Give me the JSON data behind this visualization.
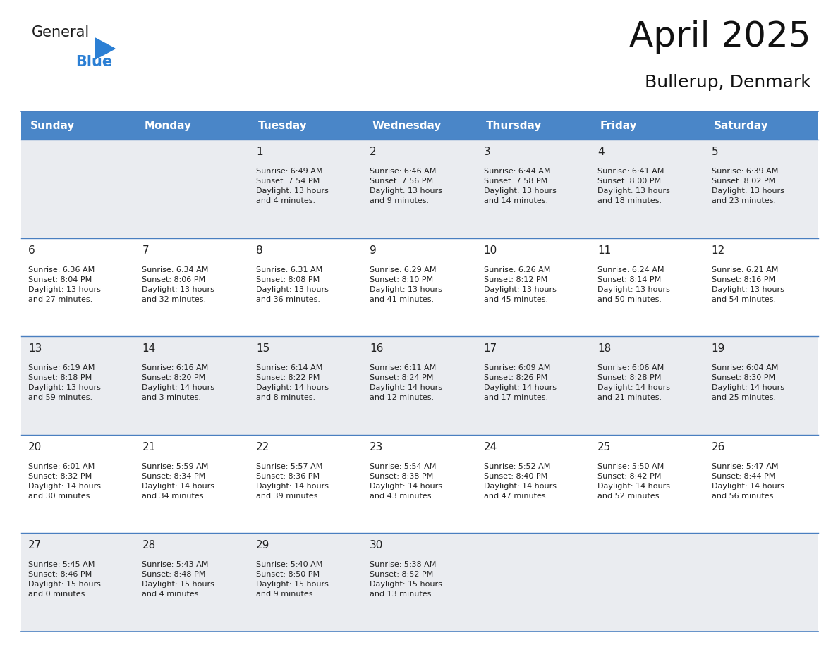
{
  "title": "April 2025",
  "subtitle": "Bullerup, Denmark",
  "header_color": "#4A86C8",
  "header_text_color": "#FFFFFF",
  "cell_bg_light": "#EAECF0",
  "cell_bg_white": "#FFFFFF",
  "border_color": "#4A7FC0",
  "text_color": "#222222",
  "day_headers": [
    "Sunday",
    "Monday",
    "Tuesday",
    "Wednesday",
    "Thursday",
    "Friday",
    "Saturday"
  ],
  "weeks": [
    [
      {
        "day": "",
        "info": ""
      },
      {
        "day": "",
        "info": ""
      },
      {
        "day": "1",
        "info": "Sunrise: 6:49 AM\nSunset: 7:54 PM\nDaylight: 13 hours\nand 4 minutes."
      },
      {
        "day": "2",
        "info": "Sunrise: 6:46 AM\nSunset: 7:56 PM\nDaylight: 13 hours\nand 9 minutes."
      },
      {
        "day": "3",
        "info": "Sunrise: 6:44 AM\nSunset: 7:58 PM\nDaylight: 13 hours\nand 14 minutes."
      },
      {
        "day": "4",
        "info": "Sunrise: 6:41 AM\nSunset: 8:00 PM\nDaylight: 13 hours\nand 18 minutes."
      },
      {
        "day": "5",
        "info": "Sunrise: 6:39 AM\nSunset: 8:02 PM\nDaylight: 13 hours\nand 23 minutes."
      }
    ],
    [
      {
        "day": "6",
        "info": "Sunrise: 6:36 AM\nSunset: 8:04 PM\nDaylight: 13 hours\nand 27 minutes."
      },
      {
        "day": "7",
        "info": "Sunrise: 6:34 AM\nSunset: 8:06 PM\nDaylight: 13 hours\nand 32 minutes."
      },
      {
        "day": "8",
        "info": "Sunrise: 6:31 AM\nSunset: 8:08 PM\nDaylight: 13 hours\nand 36 minutes."
      },
      {
        "day": "9",
        "info": "Sunrise: 6:29 AM\nSunset: 8:10 PM\nDaylight: 13 hours\nand 41 minutes."
      },
      {
        "day": "10",
        "info": "Sunrise: 6:26 AM\nSunset: 8:12 PM\nDaylight: 13 hours\nand 45 minutes."
      },
      {
        "day": "11",
        "info": "Sunrise: 6:24 AM\nSunset: 8:14 PM\nDaylight: 13 hours\nand 50 minutes."
      },
      {
        "day": "12",
        "info": "Sunrise: 6:21 AM\nSunset: 8:16 PM\nDaylight: 13 hours\nand 54 minutes."
      }
    ],
    [
      {
        "day": "13",
        "info": "Sunrise: 6:19 AM\nSunset: 8:18 PM\nDaylight: 13 hours\nand 59 minutes."
      },
      {
        "day": "14",
        "info": "Sunrise: 6:16 AM\nSunset: 8:20 PM\nDaylight: 14 hours\nand 3 minutes."
      },
      {
        "day": "15",
        "info": "Sunrise: 6:14 AM\nSunset: 8:22 PM\nDaylight: 14 hours\nand 8 minutes."
      },
      {
        "day": "16",
        "info": "Sunrise: 6:11 AM\nSunset: 8:24 PM\nDaylight: 14 hours\nand 12 minutes."
      },
      {
        "day": "17",
        "info": "Sunrise: 6:09 AM\nSunset: 8:26 PM\nDaylight: 14 hours\nand 17 minutes."
      },
      {
        "day": "18",
        "info": "Sunrise: 6:06 AM\nSunset: 8:28 PM\nDaylight: 14 hours\nand 21 minutes."
      },
      {
        "day": "19",
        "info": "Sunrise: 6:04 AM\nSunset: 8:30 PM\nDaylight: 14 hours\nand 25 minutes."
      }
    ],
    [
      {
        "day": "20",
        "info": "Sunrise: 6:01 AM\nSunset: 8:32 PM\nDaylight: 14 hours\nand 30 minutes."
      },
      {
        "day": "21",
        "info": "Sunrise: 5:59 AM\nSunset: 8:34 PM\nDaylight: 14 hours\nand 34 minutes."
      },
      {
        "day": "22",
        "info": "Sunrise: 5:57 AM\nSunset: 8:36 PM\nDaylight: 14 hours\nand 39 minutes."
      },
      {
        "day": "23",
        "info": "Sunrise: 5:54 AM\nSunset: 8:38 PM\nDaylight: 14 hours\nand 43 minutes."
      },
      {
        "day": "24",
        "info": "Sunrise: 5:52 AM\nSunset: 8:40 PM\nDaylight: 14 hours\nand 47 minutes."
      },
      {
        "day": "25",
        "info": "Sunrise: 5:50 AM\nSunset: 8:42 PM\nDaylight: 14 hours\nand 52 minutes."
      },
      {
        "day": "26",
        "info": "Sunrise: 5:47 AM\nSunset: 8:44 PM\nDaylight: 14 hours\nand 56 minutes."
      }
    ],
    [
      {
        "day": "27",
        "info": "Sunrise: 5:45 AM\nSunset: 8:46 PM\nDaylight: 15 hours\nand 0 minutes."
      },
      {
        "day": "28",
        "info": "Sunrise: 5:43 AM\nSunset: 8:48 PM\nDaylight: 15 hours\nand 4 minutes."
      },
      {
        "day": "29",
        "info": "Sunrise: 5:40 AM\nSunset: 8:50 PM\nDaylight: 15 hours\nand 9 minutes."
      },
      {
        "day": "30",
        "info": "Sunrise: 5:38 AM\nSunset: 8:52 PM\nDaylight: 15 hours\nand 13 minutes."
      },
      {
        "day": "",
        "info": ""
      },
      {
        "day": "",
        "info": ""
      },
      {
        "day": "",
        "info": ""
      }
    ]
  ],
  "logo_color_general": "#1a1a1a",
  "logo_color_blue": "#2B7FD4",
  "logo_triangle_color": "#2B7FD4",
  "title_fontsize": 36,
  "subtitle_fontsize": 18,
  "header_fontsize": 11,
  "day_num_fontsize": 11,
  "info_fontsize": 8
}
